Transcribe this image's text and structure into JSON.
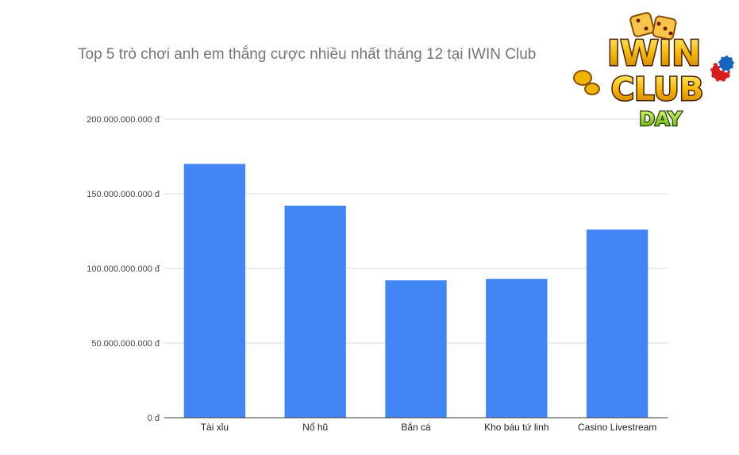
{
  "chart_data": {
    "type": "bar",
    "title": "Top 5 trò chơi anh em thắng cược nhiều nhất tháng 12 tại IWIN Club",
    "xlabel": "",
    "ylabel": "",
    "categories": [
      "Tài xỉu",
      "Nổ hũ",
      "Bắn cá",
      "Kho báu tứ linh",
      "Casino Livestream"
    ],
    "values": [
      170000000000,
      142000000000,
      92000000000,
      93000000000,
      126000000000
    ],
    "ylim": [
      0,
      200000000000
    ],
    "yticks": [
      0,
      50000000000,
      100000000000,
      150000000000,
      200000000000
    ],
    "ytick_labels": [
      "0 đ",
      "50.000.000.000 đ",
      "100.000.000.000 đ",
      "150.000.000.000 đ",
      "200.000.000.000 đ"
    ],
    "grid": true,
    "legend": "none",
    "bar_color": "#4285f4"
  },
  "logo": {
    "line1": "IWIN",
    "line2": "CLUB",
    "line3": "DAY"
  }
}
